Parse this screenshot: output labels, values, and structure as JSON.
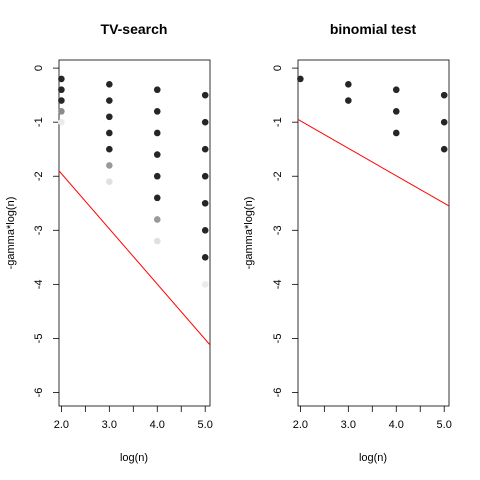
{
  "chart_data": [
    {
      "type": "scatter",
      "title": "TV-search",
      "xlabel": "log(n)",
      "ylabel": "-gamma*log(n)",
      "xlim": [
        1.95,
        5.1
      ],
      "ylim": [
        -6.25,
        0.15
      ],
      "xticks": [
        2,
        2.5,
        3,
        3.5,
        4,
        4.5,
        5
      ],
      "xtick_labels": [
        "2.0",
        "",
        "3.0",
        "",
        "4.0",
        "",
        "5.0"
      ],
      "yticks": [
        0,
        -1,
        -2,
        -3,
        -4,
        -5,
        -6
      ],
      "ytick_labels": [
        "0",
        "-1",
        "-2",
        "-3",
        "-4",
        "-5",
        "-6"
      ],
      "points": [
        {
          "x": 2,
          "y": -0.2,
          "shade": 0.15
        },
        {
          "x": 2,
          "y": -0.4,
          "shade": 0.15
        },
        {
          "x": 2,
          "y": -0.6,
          "shade": 0.15
        },
        {
          "x": 2,
          "y": -0.8,
          "shade": 0.55
        },
        {
          "x": 2,
          "y": -1.0,
          "shade": 0.92
        },
        {
          "x": 3,
          "y": -0.3,
          "shade": 0.15
        },
        {
          "x": 3,
          "y": -0.6,
          "shade": 0.15
        },
        {
          "x": 3,
          "y": -0.9,
          "shade": 0.15
        },
        {
          "x": 3,
          "y": -1.2,
          "shade": 0.15
        },
        {
          "x": 3,
          "y": -1.5,
          "shade": 0.15
        },
        {
          "x": 3,
          "y": -1.8,
          "shade": 0.6
        },
        {
          "x": 3,
          "y": -2.1,
          "shade": 0.88
        },
        {
          "x": 4,
          "y": -0.4,
          "shade": 0.15
        },
        {
          "x": 4,
          "y": -0.8,
          "shade": 0.15
        },
        {
          "x": 4,
          "y": -1.2,
          "shade": 0.15
        },
        {
          "x": 4,
          "y": -1.6,
          "shade": 0.15
        },
        {
          "x": 4,
          "y": -2.0,
          "shade": 0.15
        },
        {
          "x": 4,
          "y": -2.4,
          "shade": 0.15
        },
        {
          "x": 4,
          "y": -2.8,
          "shade": 0.6
        },
        {
          "x": 4,
          "y": -3.2,
          "shade": 0.88
        },
        {
          "x": 5,
          "y": -0.5,
          "shade": 0.15
        },
        {
          "x": 5,
          "y": -1.0,
          "shade": 0.15
        },
        {
          "x": 5,
          "y": -1.5,
          "shade": 0.15
        },
        {
          "x": 5,
          "y": -2.0,
          "shade": 0.15
        },
        {
          "x": 5,
          "y": -2.5,
          "shade": 0.15
        },
        {
          "x": 5,
          "y": -3.0,
          "shade": 0.15
        },
        {
          "x": 5,
          "y": -3.5,
          "shade": 0.15
        },
        {
          "x": 5,
          "y": -4.0,
          "shade": 0.92
        }
      ],
      "line": {
        "x": [
          1.95,
          5.1
        ],
        "y": [
          -1.9,
          -5.12
        ],
        "color": "#ff0000"
      }
    },
    {
      "type": "scatter",
      "title": "binomial test",
      "xlabel": "log(n)",
      "ylabel": "-gamma*log(n)",
      "xlim": [
        1.95,
        5.1
      ],
      "ylim": [
        -6.25,
        0.15
      ],
      "xticks": [
        2,
        2.5,
        3,
        3.5,
        4,
        4.5,
        5
      ],
      "xtick_labels": [
        "2.0",
        "",
        "3.0",
        "",
        "4.0",
        "",
        "5.0"
      ],
      "yticks": [
        0,
        -1,
        -2,
        -3,
        -4,
        -5,
        -6
      ],
      "ytick_labels": [
        "0",
        "-1",
        "-2",
        "-3",
        "-4",
        "-5",
        "-6"
      ],
      "points": [
        {
          "x": 2,
          "y": -0.2,
          "shade": 0.15
        },
        {
          "x": 3,
          "y": -0.3,
          "shade": 0.15
        },
        {
          "x": 3,
          "y": -0.6,
          "shade": 0.15
        },
        {
          "x": 4,
          "y": -0.4,
          "shade": 0.15
        },
        {
          "x": 4,
          "y": -0.8,
          "shade": 0.15
        },
        {
          "x": 4,
          "y": -1.2,
          "shade": 0.15
        },
        {
          "x": 5,
          "y": -0.5,
          "shade": 0.15
        },
        {
          "x": 5,
          "y": -1.0,
          "shade": 0.15
        },
        {
          "x": 5,
          "y": -1.5,
          "shade": 0.15
        }
      ],
      "line": {
        "x": [
          1.95,
          5.1
        ],
        "y": [
          -0.95,
          -2.55
        ],
        "color": "#ff0000"
      }
    }
  ]
}
